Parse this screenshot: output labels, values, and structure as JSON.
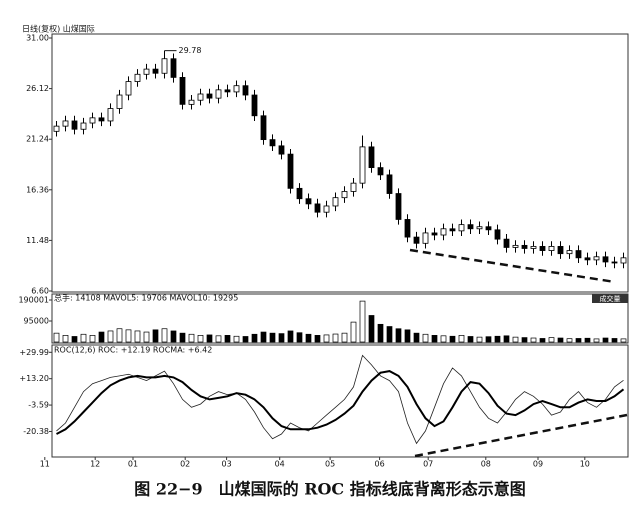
{
  "caption": "图 22−9　山煤国际的 ROC 指标线底背离形态示意图",
  "chart_data": [
    {
      "type": "candlestick",
      "title": "日线(复权)  山煤国际",
      "annotation": "29.78",
      "color": "#000000",
      "open": [
        22.0,
        22.5,
        23.0,
        22.2,
        22.8,
        23.3,
        23.0,
        24.2,
        25.5,
        26.8,
        27.5,
        28.0,
        27.6,
        29.0,
        27.2,
        24.6,
        25.0,
        25.6,
        25.2,
        26.0,
        25.8,
        26.4,
        25.5,
        23.5,
        21.2,
        20.6,
        19.8,
        16.5,
        15.5,
        15.0,
        14.2,
        14.8,
        15.6,
        16.2,
        17.0,
        20.5,
        18.5,
        17.8,
        16.0,
        13.5,
        11.8,
        11.2,
        12.2,
        12.0,
        12.6,
        12.4,
        13.0,
        12.6,
        12.8,
        12.5,
        11.6,
        10.8,
        11.0,
        10.7,
        10.9,
        10.5,
        10.9,
        10.2,
        10.5,
        9.8,
        9.6,
        9.9,
        9.4,
        9.3
      ],
      "high": [
        23.0,
        23.5,
        23.5,
        23.3,
        23.8,
        23.8,
        24.7,
        26.0,
        27.3,
        28.0,
        28.5,
        28.5,
        29.78,
        29.5,
        27.7,
        25.5,
        26.1,
        26.1,
        26.5,
        26.5,
        26.9,
        26.9,
        26.0,
        24.0,
        21.7,
        21.1,
        20.3,
        17.0,
        16.0,
        15.5,
        15.3,
        16.1,
        16.7,
        17.5,
        21.6,
        21.0,
        19.0,
        18.3,
        16.5,
        14.0,
        12.3,
        12.7,
        12.7,
        13.1,
        13.1,
        13.5,
        13.5,
        13.3,
        13.3,
        13.0,
        12.1,
        11.5,
        11.5,
        11.4,
        11.4,
        11.4,
        11.4,
        11.0,
        11.0,
        10.3,
        10.4,
        10.4,
        9.9,
        10.3
      ],
      "low": [
        21.5,
        22.0,
        21.7,
        21.7,
        22.3,
        22.5,
        22.5,
        23.7,
        25.0,
        26.3,
        27.0,
        27.1,
        27.1,
        26.7,
        24.1,
        24.1,
        24.5,
        24.7,
        24.7,
        25.3,
        25.3,
        25.0,
        23.0,
        20.7,
        20.1,
        19.3,
        16.0,
        15.0,
        14.5,
        13.7,
        13.7,
        14.3,
        15.1,
        15.7,
        16.5,
        18.0,
        17.3,
        15.5,
        13.0,
        11.3,
        10.7,
        10.7,
        11.5,
        11.5,
        11.9,
        11.9,
        12.1,
        12.1,
        12.0,
        11.1,
        10.3,
        10.3,
        10.2,
        10.2,
        10.0,
        10.0,
        9.7,
        9.7,
        9.3,
        9.1,
        9.1,
        8.9,
        8.8,
        8.8
      ],
      "close": [
        22.5,
        23.0,
        22.2,
        22.8,
        23.3,
        23.0,
        24.2,
        25.5,
        26.8,
        27.5,
        28.0,
        27.6,
        29.0,
        27.2,
        24.6,
        25.0,
        25.6,
        25.2,
        26.0,
        25.8,
        26.4,
        25.5,
        23.5,
        21.2,
        20.6,
        19.8,
        16.5,
        15.5,
        15.0,
        14.2,
        14.8,
        15.6,
        16.2,
        17.0,
        20.5,
        18.5,
        17.8,
        16.0,
        13.5,
        11.8,
        11.2,
        12.2,
        12.0,
        12.6,
        12.4,
        13.0,
        12.6,
        12.8,
        12.5,
        11.6,
        10.8,
        11.0,
        10.7,
        10.9,
        10.5,
        10.9,
        10.2,
        10.5,
        9.8,
        9.6,
        9.9,
        9.4,
        9.3,
        9.8
      ],
      "ylim": [
        6.6,
        31.0
      ],
      "yticks": [
        {
          "value": 6.6,
          "label": "6.60"
        },
        {
          "value": 11.48,
          "label": "11.48"
        },
        {
          "value": 16.36,
          "label": "16.36"
        },
        {
          "value": 21.24,
          "label": "21.24"
        },
        {
          "value": 26.12,
          "label": "26.12"
        },
        {
          "value": 31.0,
          "label": "31.00"
        }
      ]
    },
    {
      "type": "volume",
      "title": "总手: 14108  MAVOL5: 19706  MAVOL10: 19295",
      "label": "成交量",
      "color": "#000000",
      "values": [
        40000,
        30000,
        25000,
        35000,
        30000,
        45000,
        50000,
        60000,
        55000,
        50000,
        45000,
        55000,
        60000,
        50000,
        40000,
        35000,
        30000,
        32000,
        28000,
        30000,
        26000,
        25000,
        35000,
        45000,
        40000,
        38000,
        50000,
        42000,
        35000,
        30000,
        32000,
        36000,
        40000,
        90000,
        185000,
        120000,
        80000,
        70000,
        60000,
        55000,
        40000,
        35000,
        30000,
        28000,
        26000,
        30000,
        25000,
        22000,
        24000,
        26000,
        28000,
        22000,
        20000,
        18000,
        16000,
        20000,
        18000,
        15000,
        16000,
        17000,
        14000,
        18000,
        16000,
        14108
      ],
      "ylim": [
        0,
        190001
      ],
      "yticks": [
        95000,
        190001
      ]
    },
    {
      "type": "line",
      "title": "ROC(12,6)  ROC: +12.19  ROCMA: +6.42",
      "series": [
        {
          "color": "#222222",
          "width": 0.8,
          "values": [
            -20,
            -15,
            -5,
            5,
            10,
            12,
            14,
            15,
            16,
            14,
            12,
            15,
            18,
            10,
            0,
            -5,
            -3,
            2,
            5,
            3,
            4,
            0,
            -8,
            -18,
            -25,
            -22,
            -15,
            -18,
            -20,
            -15,
            -10,
            -5,
            0,
            8,
            28,
            22,
            15,
            12,
            5,
            -15,
            -28,
            -20,
            -5,
            10,
            20,
            15,
            5,
            -5,
            -12,
            -15,
            -8,
            0,
            5,
            2,
            -3,
            -10,
            -8,
            0,
            5,
            -2,
            -5,
            0,
            8,
            12.19
          ]
        },
        {
          "color": "#000000",
          "width": 2,
          "values": [
            -22,
            -19,
            -14,
            -8,
            -2,
            4,
            9,
            12,
            14,
            15,
            14,
            14,
            15,
            14,
            11,
            6,
            2,
            0,
            1,
            2,
            4,
            3,
            0,
            -5,
            -12,
            -17,
            -19,
            -19,
            -19,
            -18,
            -16,
            -13,
            -9,
            -4,
            5,
            12,
            17,
            18,
            15,
            8,
            -3,
            -12,
            -17,
            -14,
            -5,
            5,
            11,
            10,
            4,
            -4,
            -9,
            -10,
            -7,
            -3,
            -1,
            -3,
            -5,
            -5,
            -2,
            0,
            -1,
            -1,
            2,
            6.42
          ]
        }
      ],
      "ylim": [
        -36,
        34
      ],
      "yticks": [
        {
          "value": 29.99,
          "label": "+29.99"
        },
        {
          "value": 13.2,
          "label": "+13.20"
        },
        {
          "value": -3.59,
          "label": "-3.59"
        },
        {
          "value": -20.38,
          "label": "-20.38"
        }
      ],
      "xlim": [
        0,
        64
      ],
      "xticks": [
        {
          "value": -0.8,
          "label": "11"
        },
        {
          "value": 4.8,
          "label": "12"
        },
        {
          "value": 9.0,
          "label": "01"
        },
        {
          "value": 14.8,
          "label": "02"
        },
        {
          "value": 19.4,
          "label": "03"
        },
        {
          "value": 25.3,
          "label": "04"
        },
        {
          "value": 30.9,
          "label": "05"
        },
        {
          "value": 36.4,
          "label": "06"
        },
        {
          "value": 41.8,
          "label": "07"
        },
        {
          "value": 48.2,
          "label": "08"
        },
        {
          "value": 54.0,
          "label": "09"
        },
        {
          "value": 59.2,
          "label": "10"
        }
      ]
    }
  ]
}
